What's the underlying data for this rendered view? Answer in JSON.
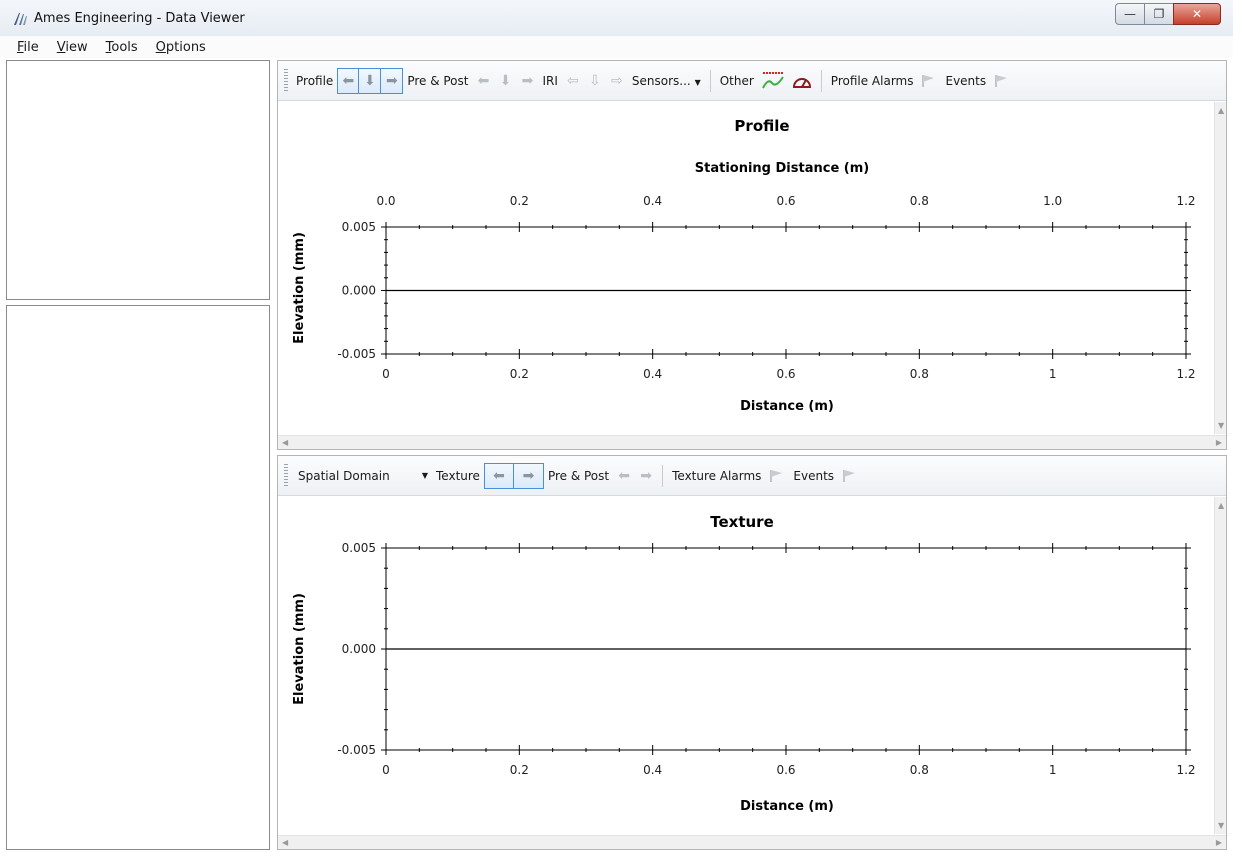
{
  "window": {
    "title": "Ames Engineering - Data Viewer",
    "app_icon": "app-logo-icon"
  },
  "menu": [
    {
      "accel": "F",
      "rest": "ile"
    },
    {
      "accel": "V",
      "rest": "iew"
    },
    {
      "accel": "T",
      "rest": "ools"
    },
    {
      "accel": "O",
      "rest": "ptions"
    }
  ],
  "toolbar1": {
    "profile_label": "Profile",
    "prepost_label": "Pre & Post",
    "iri_label": "IRI",
    "sensors_label": "Sensors...",
    "other_label": "Other",
    "profile_alarms_label": "Profile Alarms",
    "events_label": "Events"
  },
  "toolbar2": {
    "domain_value": "Spatial Domain",
    "texture_label": "Texture",
    "prepost_label": "Pre & Post",
    "texture_alarms_label": "Texture Alarms",
    "events_label": "Events"
  },
  "colors": {
    "selection_border": "#4a90d9",
    "flag": "#c8ccd0",
    "trend_green": "#3cb043",
    "trend_red": "#e02020"
  },
  "chart_data": [
    {
      "type": "line",
      "title": "Profile",
      "top_xlabel": "Stationing Distance (m)",
      "top_ticks": [
        "0.0",
        "0.2",
        "0.4",
        "0.6",
        "0.8",
        "1.0",
        "1.2"
      ],
      "xlabel": "Distance (m)",
      "ylabel": "Elevation (mm)",
      "x_ticks": [
        "0",
        "0.2",
        "0.4",
        "0.6",
        "0.8",
        "1",
        "1.2"
      ],
      "y_ticks": [
        "0.005",
        "0.000",
        "-0.005"
      ],
      "xlim": [
        0,
        1.2
      ],
      "ylim": [
        -0.005,
        0.005
      ],
      "series": [
        {
          "x": [
            0,
            1.2
          ],
          "y": [
            0,
            0
          ]
        }
      ]
    },
    {
      "type": "line",
      "title": "Texture",
      "xlabel": "Distance (m)",
      "ylabel": "Elevation (mm)",
      "x_ticks": [
        "0",
        "0.2",
        "0.4",
        "0.6",
        "0.8",
        "1",
        "1.2"
      ],
      "y_ticks": [
        "0.005",
        "0.000",
        "-0.005"
      ],
      "xlim": [
        0,
        1.2
      ],
      "ylim": [
        -0.005,
        0.005
      ],
      "series": [
        {
          "x": [
            0,
            1.2
          ],
          "y": [
            0,
            0
          ]
        }
      ]
    }
  ]
}
